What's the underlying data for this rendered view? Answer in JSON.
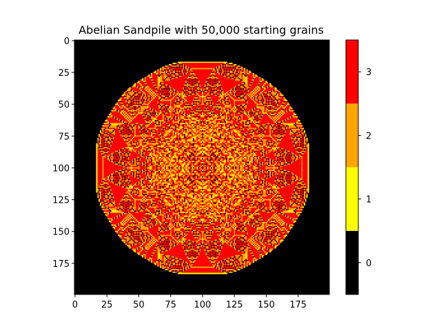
{
  "chart_data": {
    "type": "heatmap",
    "title": "Abelian Sandpile with 50,000 starting grains",
    "grid_size": 200,
    "starting_grains": 50000,
    "x_ticks": [
      0,
      25,
      50,
      75,
      100,
      125,
      150,
      175
    ],
    "y_ticks": [
      0,
      25,
      50,
      75,
      100,
      125,
      150,
      175
    ],
    "x_range": [
      -0.5,
      199.5
    ],
    "y_range": [
      -0.5,
      199.5
    ],
    "y_inverted": true,
    "colorbar": {
      "levels": [
        0,
        1,
        2,
        3
      ],
      "colors": [
        "#000000",
        "#ffff00",
        "#ffa500",
        "#ff0000"
      ],
      "tick_labels": [
        "0",
        "1",
        "2",
        "3"
      ]
    }
  }
}
